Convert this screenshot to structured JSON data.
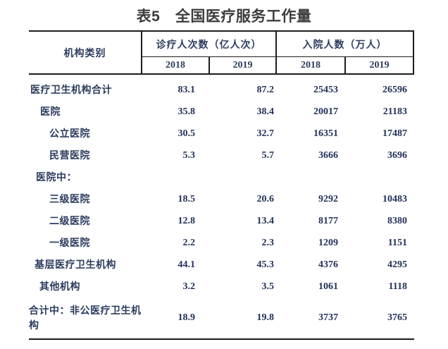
{
  "title": "表5　全国医疗服务工作量",
  "colors": {
    "title_text": "#3d3d3d",
    "table_text": "#2d3c5e",
    "number_text": "#22315a",
    "border": "#1c1c1c",
    "background": "#ffffff"
  },
  "chart_data": {
    "type": "table",
    "title": "表5　全国医疗服务工作量",
    "category_header": "机构类别",
    "column_groups": [
      {
        "label": "诊疗人次数（亿人次）",
        "sub_columns": [
          "2018",
          "2019"
        ]
      },
      {
        "label": "入院人数（万人）",
        "sub_columns": [
          "2018",
          "2019"
        ]
      }
    ],
    "rows": [
      {
        "label": "医疗卫生机构合计",
        "indent": 0,
        "values": [
          83.1,
          87.2,
          25453,
          26596
        ]
      },
      {
        "label": "医院",
        "indent": 1,
        "values": [
          35.8,
          38.4,
          20017,
          21183
        ]
      },
      {
        "label": "公立医院",
        "indent": 2,
        "values": [
          30.5,
          32.7,
          16351,
          17487
        ]
      },
      {
        "label": "民营医院",
        "indent": 2,
        "values": [
          5.3,
          5.7,
          3666,
          3696
        ]
      },
      {
        "label": "医院中：",
        "indent": 1,
        "values": [
          "",
          "",
          "",
          ""
        ]
      },
      {
        "label": "三级医院",
        "indent": 2,
        "values": [
          18.5,
          20.6,
          9292,
          10483
        ]
      },
      {
        "label": "二级医院",
        "indent": 2,
        "values": [
          12.8,
          13.4,
          8177,
          8380
        ]
      },
      {
        "label": "一级医院",
        "indent": 2,
        "values": [
          2.2,
          2.3,
          1209,
          1151
        ]
      },
      {
        "label": "基层医疗卫生机构",
        "indent": 1,
        "values": [
          44.1,
          45.3,
          4376,
          4295
        ]
      },
      {
        "label": "其他机构",
        "indent": 1,
        "values": [
          3.2,
          3.5,
          1061,
          1118
        ]
      },
      {
        "label": "合计中：非公医疗卫生机构",
        "indent": 0,
        "values": [
          18.9,
          19.8,
          3737,
          3765
        ]
      }
    ]
  }
}
